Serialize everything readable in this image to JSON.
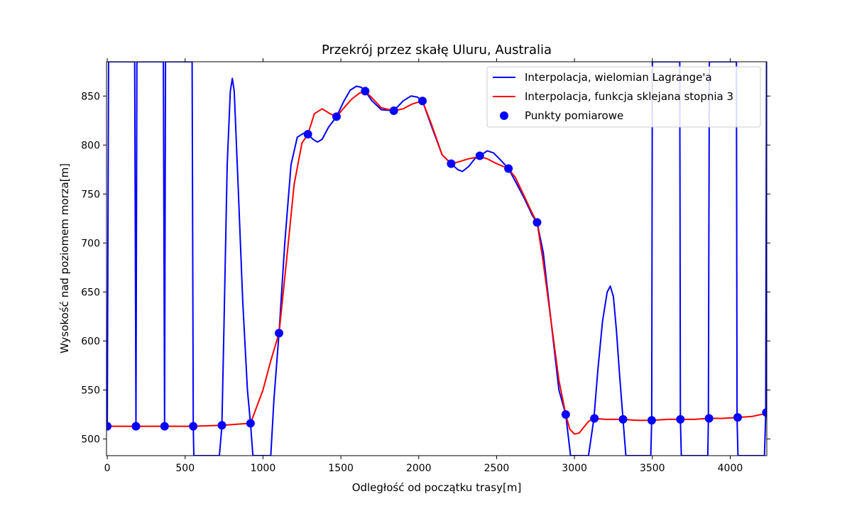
{
  "chart_data": {
    "type": "line",
    "title": "Przekrój przez skałę Uluru, Australia",
    "xlabel": "Odległość od początku trasy[m]",
    "ylabel": "Wysokość nad poziomem morza[m]",
    "xlim": [
      -5,
      4235
    ],
    "ylim": [
      483,
      885
    ],
    "xticks": [
      0,
      500,
      1000,
      1500,
      2000,
      2500,
      3000,
      3500,
      4000
    ],
    "yticks": [
      500,
      550,
      600,
      650,
      700,
      750,
      800,
      850
    ],
    "grid": false,
    "legend_position": "top-right",
    "series": [
      {
        "name": "Interpolacja, wielomian Lagrange'a",
        "kind": "line",
        "color": "#0000ff",
        "points": [
          [
            0,
            513
          ],
          [
            8,
            885
          ],
          [
            90,
            885
          ],
          [
            176,
            885
          ],
          [
            184,
            513
          ],
          [
            190,
            885
          ],
          [
            270,
            885
          ],
          [
            360,
            885
          ],
          [
            368,
            513
          ],
          [
            374,
            885
          ],
          [
            460,
            885
          ],
          [
            545,
            885
          ],
          [
            552,
            513
          ],
          [
            556,
            483
          ],
          [
            620,
            483
          ],
          [
            720,
            483
          ],
          [
            736,
            513
          ],
          [
            750,
            620
          ],
          [
            770,
            780
          ],
          [
            790,
            855
          ],
          [
            803,
            868
          ],
          [
            815,
            855
          ],
          [
            840,
            760
          ],
          [
            870,
            640
          ],
          [
            900,
            550
          ],
          [
            920,
            515
          ],
          [
            935,
            483
          ],
          [
            1000,
            483
          ],
          [
            1050,
            483
          ],
          [
            1070,
            540
          ],
          [
            1103,
            608
          ],
          [
            1140,
            700
          ],
          [
            1180,
            780
          ],
          [
            1220,
            808
          ],
          [
            1260,
            812
          ],
          [
            1288,
            811
          ],
          [
            1320,
            806
          ],
          [
            1350,
            803
          ],
          [
            1380,
            806
          ],
          [
            1420,
            818
          ],
          [
            1472,
            829
          ],
          [
            1520,
            845
          ],
          [
            1560,
            856
          ],
          [
            1600,
            860
          ],
          [
            1630,
            859
          ],
          [
            1656,
            855
          ],
          [
            1700,
            845
          ],
          [
            1760,
            836
          ],
          [
            1840,
            835
          ],
          [
            1900,
            845
          ],
          [
            1950,
            850
          ],
          [
            1990,
            849
          ],
          [
            2024,
            845
          ],
          [
            2080,
            820
          ],
          [
            2150,
            790
          ],
          [
            2208,
            781
          ],
          [
            2250,
            775
          ],
          [
            2280,
            773
          ],
          [
            2320,
            778
          ],
          [
            2360,
            786
          ],
          [
            2392,
            789
          ],
          [
            2440,
            794
          ],
          [
            2480,
            792
          ],
          [
            2530,
            784
          ],
          [
            2576,
            776
          ],
          [
            2620,
            763
          ],
          [
            2680,
            745
          ],
          [
            2730,
            728
          ],
          [
            2760,
            721
          ],
          [
            2800,
            690
          ],
          [
            2850,
            620
          ],
          [
            2900,
            550
          ],
          [
            2944,
            525
          ],
          [
            2975,
            483
          ],
          [
            3090,
            483
          ],
          [
            3125,
            521
          ],
          [
            3150,
            570
          ],
          [
            3180,
            620
          ],
          [
            3210,
            650
          ],
          [
            3230,
            656
          ],
          [
            3250,
            645
          ],
          [
            3270,
            610
          ],
          [
            3290,
            565
          ],
          [
            3312,
            520
          ],
          [
            3330,
            483
          ],
          [
            3400,
            483
          ],
          [
            3490,
            483
          ],
          [
            3496,
            520
          ],
          [
            3500,
            885
          ],
          [
            3640,
            885
          ],
          [
            3676,
            885
          ],
          [
            3680,
            520
          ],
          [
            3686,
            483
          ],
          [
            3770,
            483
          ],
          [
            3856,
            483
          ],
          [
            3860,
            520
          ],
          [
            3866,
            885
          ],
          [
            3950,
            885
          ],
          [
            4040,
            885
          ],
          [
            4044,
            521
          ],
          [
            4050,
            483
          ],
          [
            4140,
            483
          ],
          [
            4220,
            483
          ],
          [
            4228,
            526
          ],
          [
            4233,
            885
          ]
        ]
      },
      {
        "name": "Interpolacja, funkcja sklejana stopnia 3",
        "kind": "line",
        "color": "#ff0000",
        "points": [
          [
            0,
            513
          ],
          [
            184,
            513
          ],
          [
            368,
            513
          ],
          [
            552,
            513
          ],
          [
            736,
            514
          ],
          [
            920,
            516
          ],
          [
            1000,
            550
          ],
          [
            1050,
            580
          ],
          [
            1103,
            608
          ],
          [
            1150,
            680
          ],
          [
            1200,
            760
          ],
          [
            1250,
            802
          ],
          [
            1288,
            811
          ],
          [
            1330,
            832
          ],
          [
            1380,
            837
          ],
          [
            1430,
            832
          ],
          [
            1472,
            829
          ],
          [
            1520,
            838
          ],
          [
            1570,
            847
          ],
          [
            1620,
            853
          ],
          [
            1656,
            855
          ],
          [
            1700,
            848
          ],
          [
            1760,
            838
          ],
          [
            1840,
            835
          ],
          [
            1900,
            837
          ],
          [
            1960,
            842
          ],
          [
            2024,
            845
          ],
          [
            2080,
            822
          ],
          [
            2150,
            790
          ],
          [
            2208,
            781
          ],
          [
            2260,
            783
          ],
          [
            2320,
            786
          ],
          [
            2392,
            788
          ],
          [
            2440,
            786
          ],
          [
            2500,
            781
          ],
          [
            2576,
            776
          ],
          [
            2620,
            767
          ],
          [
            2680,
            747
          ],
          [
            2730,
            730
          ],
          [
            2760,
            721
          ],
          [
            2800,
            680
          ],
          [
            2850,
            620
          ],
          [
            2900,
            560
          ],
          [
            2944,
            525
          ],
          [
            2970,
            510
          ],
          [
            3000,
            505
          ],
          [
            3030,
            506
          ],
          [
            3060,
            512
          ],
          [
            3090,
            518
          ],
          [
            3125,
            521
          ],
          [
            3200,
            520
          ],
          [
            3312,
            520
          ],
          [
            3400,
            519
          ],
          [
            3496,
            519
          ],
          [
            3600,
            520
          ],
          [
            3680,
            520
          ],
          [
            3770,
            520
          ],
          [
            3860,
            521
          ],
          [
            3950,
            521
          ],
          [
            4044,
            522
          ],
          [
            4140,
            523
          ],
          [
            4228,
            526
          ]
        ]
      },
      {
        "name": "Punkty pomiarowe",
        "kind": "scatter",
        "color": "#0000ff",
        "points": [
          [
            0,
            513
          ],
          [
            184,
            513
          ],
          [
            368,
            513
          ],
          [
            552,
            513
          ],
          [
            736,
            514
          ],
          [
            920,
            516
          ],
          [
            1103,
            608
          ],
          [
            1288,
            811
          ],
          [
            1472,
            829
          ],
          [
            1656,
            855
          ],
          [
            1840,
            835
          ],
          [
            2024,
            845
          ],
          [
            2208,
            781
          ],
          [
            2392,
            789
          ],
          [
            2576,
            776
          ],
          [
            2760,
            721
          ],
          [
            2944,
            525
          ],
          [
            3128,
            521
          ],
          [
            3312,
            520
          ],
          [
            3496,
            519
          ],
          [
            3680,
            520
          ],
          [
            3864,
            521
          ],
          [
            4048,
            522
          ],
          [
            4232,
            527
          ]
        ]
      }
    ]
  }
}
